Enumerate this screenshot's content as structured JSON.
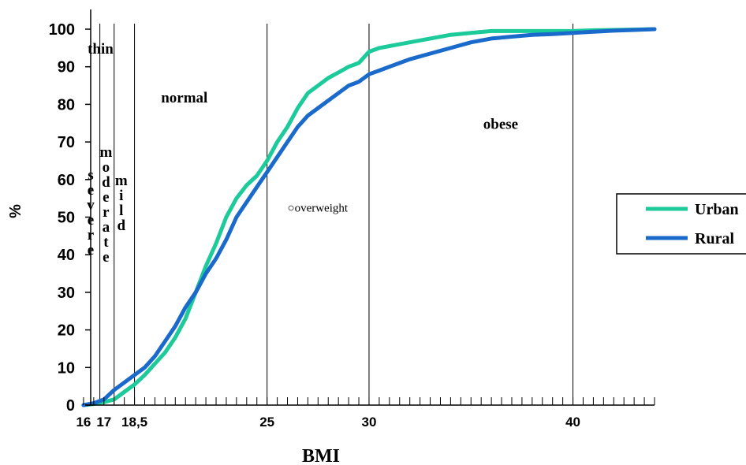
{
  "chart_data": {
    "type": "line",
    "title": "",
    "xlabel": "BMI",
    "ylabel": "%",
    "xlim": [
      15.5,
      44
    ],
    "ylim": [
      0,
      100
    ],
    "x_ticks": [
      {
        "value": 16,
        "label": "16"
      },
      {
        "value": 17,
        "label": "17"
      },
      {
        "value": 18.5,
        "label": "18,5"
      },
      {
        "value": 25,
        "label": "25"
      },
      {
        "value": 30,
        "label": "30"
      },
      {
        "value": 40,
        "label": "40"
      }
    ],
    "y_ticks": [
      0,
      10,
      20,
      30,
      40,
      50,
      60,
      70,
      80,
      90,
      100
    ],
    "cutoffs": [
      16.8,
      17.5,
      18.5,
      25,
      30,
      40
    ],
    "regions": [
      {
        "name": "region-thin",
        "text": "thin",
        "x": 16.2,
        "y": 93.5,
        "orient": "horizontal"
      },
      {
        "name": "region-severe",
        "text": "severe",
        "x": 16.35,
        "y": 60,
        "orient": "vertical"
      },
      {
        "name": "region-moderate",
        "text": "moderate",
        "x": 17.1,
        "y": 66,
        "orient": "vertical"
      },
      {
        "name": "region-mild",
        "text": "mild",
        "x": 17.85,
        "y": 58.5,
        "orient": "vertical"
      },
      {
        "name": "region-normal",
        "text": "normal",
        "x": 19.8,
        "y": 80.5,
        "orient": "horizontal"
      },
      {
        "name": "region-overweight",
        "text": "○overweight",
        "x": 26.0,
        "y": 51.5,
        "orient": "horizontal",
        "small": true
      },
      {
        "name": "region-obese",
        "text": "obese",
        "x": 35.6,
        "y": 73.5,
        "orient": "horizontal"
      }
    ],
    "legend_position": "right",
    "series": [
      {
        "name": "Urban",
        "color": "#1ccb99",
        "x": [
          16,
          16.5,
          17,
          17.5,
          18,
          18.5,
          19,
          19.5,
          20,
          20.5,
          21,
          21.5,
          22,
          22.5,
          23,
          23.5,
          24,
          24.5,
          25,
          25.5,
          26,
          26.5,
          27,
          27.5,
          28,
          28.5,
          29,
          29.5,
          30,
          30.5,
          31,
          31.5,
          32,
          33,
          34,
          35,
          36,
          37,
          38,
          39,
          40,
          41,
          42,
          43,
          44
        ],
        "values": [
          0,
          0.3,
          0.8,
          1.5,
          3.5,
          5.5,
          8,
          11,
          14,
          18,
          23,
          30,
          37,
          43,
          50,
          55,
          58.5,
          61,
          65,
          70,
          74,
          79,
          83,
          85,
          87,
          88.5,
          90,
          91,
          94,
          95,
          95.5,
          96,
          96.5,
          97.5,
          98.5,
          99,
          99.5,
          99.5,
          99.5,
          99.5,
          99.5,
          99.7,
          99.8,
          99.9,
          100
        ]
      },
      {
        "name": "Rural",
        "color": "#1a6acb",
        "x": [
          16,
          16.5,
          17,
          17.5,
          18,
          18.5,
          19,
          19.5,
          20,
          20.5,
          21,
          21.5,
          22,
          22.5,
          23,
          23.5,
          24,
          24.5,
          25,
          25.5,
          26,
          26.5,
          27,
          27.5,
          28,
          28.5,
          29,
          29.5,
          30,
          30.5,
          31,
          31.5,
          32,
          33,
          34,
          35,
          36,
          37,
          38,
          39,
          40,
          41,
          42,
          43,
          44
        ],
        "values": [
          0,
          0.5,
          1.5,
          4,
          6,
          8,
          10,
          13,
          17,
          21,
          26,
          30,
          35,
          39,
          44,
          50,
          54,
          58,
          62,
          66,
          70,
          74,
          77,
          79,
          81,
          83,
          85,
          86,
          88,
          89,
          90,
          91,
          92,
          93.5,
          95,
          96.5,
          97.5,
          98,
          98.5,
          98.7,
          99,
          99.3,
          99.6,
          99.8,
          100
        ]
      }
    ]
  }
}
